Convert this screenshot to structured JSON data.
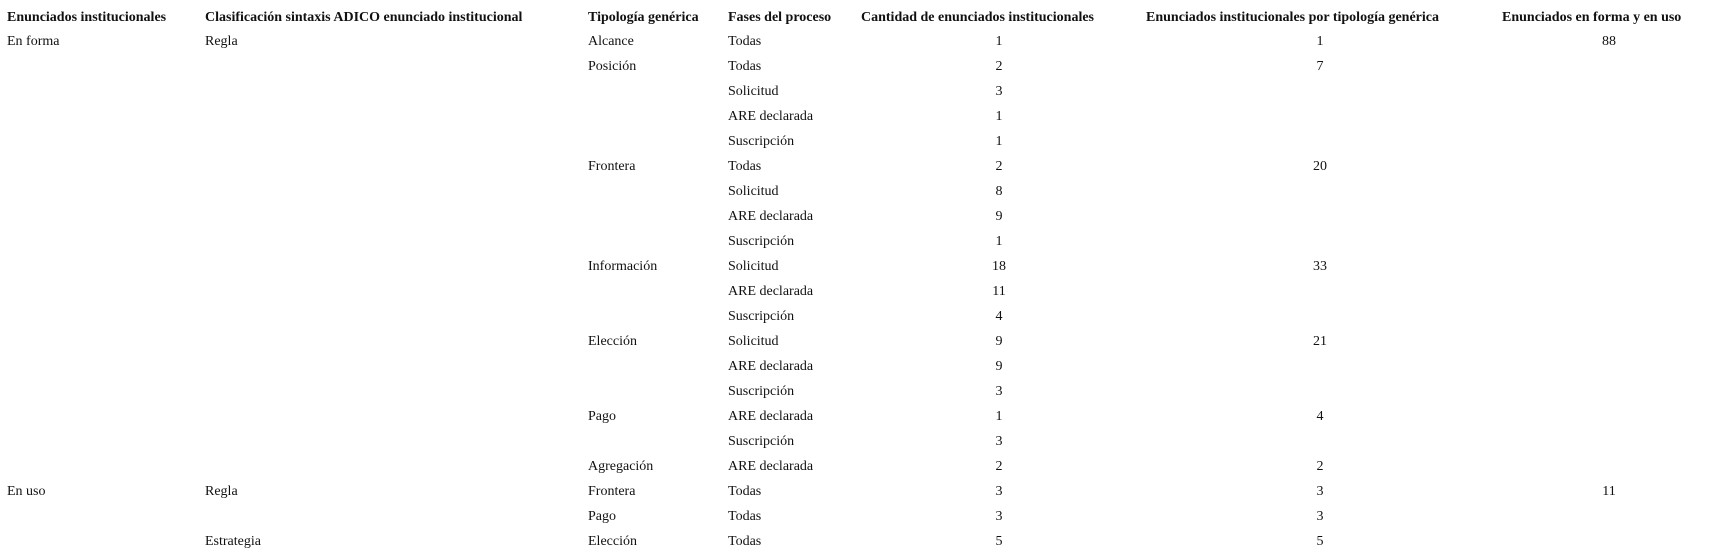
{
  "table": {
    "headers": [
      "Enunciados institucionales",
      "Clasificación sintaxis ADICO enunciado institucional",
      "Tipología genérica",
      "Fases del proceso",
      "Cantidad de enunciados institucionales",
      "Enunciados institucionales por tipología genérica",
      "Enunciados en forma y en uso"
    ],
    "rows": [
      [
        "En forma",
        "Regla",
        "Alcance",
        "Todas",
        1,
        1,
        88
      ],
      [
        null,
        null,
        "Posición",
        "Todas",
        2,
        7,
        null
      ],
      [
        null,
        null,
        null,
        "Solicitud",
        3,
        null,
        null
      ],
      [
        null,
        null,
        null,
        "ARE declarada",
        1,
        null,
        null
      ],
      [
        null,
        null,
        null,
        "Suscripción",
        1,
        null,
        null
      ],
      [
        null,
        null,
        "Frontera",
        "Todas",
        2,
        20,
        null
      ],
      [
        null,
        null,
        null,
        "Solicitud",
        8,
        null,
        null
      ],
      [
        null,
        null,
        null,
        "ARE declarada",
        9,
        null,
        null
      ],
      [
        null,
        null,
        null,
        "Suscripción",
        1,
        null,
        null
      ],
      [
        null,
        null,
        "Información",
        "Solicitud",
        18,
        33,
        null
      ],
      [
        null,
        null,
        null,
        "ARE declarada",
        11,
        null,
        null
      ],
      [
        null,
        null,
        null,
        "Suscripción",
        4,
        null,
        null
      ],
      [
        null,
        null,
        "Elección",
        "Solicitud",
        9,
        21,
        null
      ],
      [
        null,
        null,
        null,
        "ARE declarada",
        9,
        null,
        null
      ],
      [
        null,
        null,
        null,
        "Suscripción",
        3,
        null,
        null
      ],
      [
        null,
        null,
        "Pago",
        "ARE declarada",
        1,
        4,
        null
      ],
      [
        null,
        null,
        null,
        "Suscripción",
        3,
        null,
        null
      ],
      [
        null,
        null,
        "Agregación",
        "ARE declarada",
        2,
        2,
        null
      ],
      [
        "En uso",
        "Regla",
        "Frontera",
        "Todas",
        3,
        3,
        11
      ],
      [
        null,
        null,
        "Pago",
        "Todas",
        3,
        3,
        null
      ],
      [
        null,
        "Estrategia",
        "Elección",
        "Todas",
        5,
        5,
        null
      ]
    ]
  }
}
